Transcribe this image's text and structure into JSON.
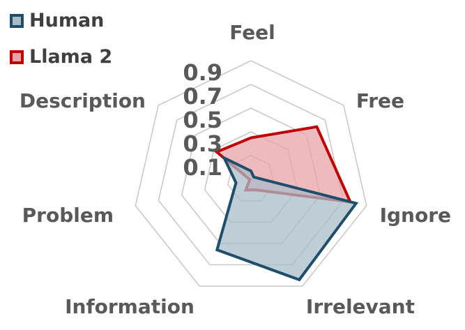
{
  "chart_data": {
    "type": "radar",
    "axes": [
      "Feel",
      "Free",
      "Ignore",
      "Irrelevant",
      "Information",
      "Problem",
      "Description"
    ],
    "tick_labels": [
      "0.1",
      "0.3",
      "0.5",
      "0.7",
      "0.9"
    ],
    "rlim": [
      0,
      1
    ],
    "grid": true,
    "legend_position": "top-left",
    "series": [
      {
        "name": "Human",
        "values": [
          0.07,
          0.03,
          0.91,
          0.94,
          0.66,
          0.13,
          0.29
        ],
        "color": "#1f4e6b",
        "fill": "#a9bcc8"
      },
      {
        "name": "Llama 2",
        "values": [
          0.35,
          0.71,
          0.86,
          0.1,
          0.1,
          0.01,
          0.37
        ],
        "color": "#c00000",
        "fill": "#e8a3a8"
      }
    ]
  }
}
